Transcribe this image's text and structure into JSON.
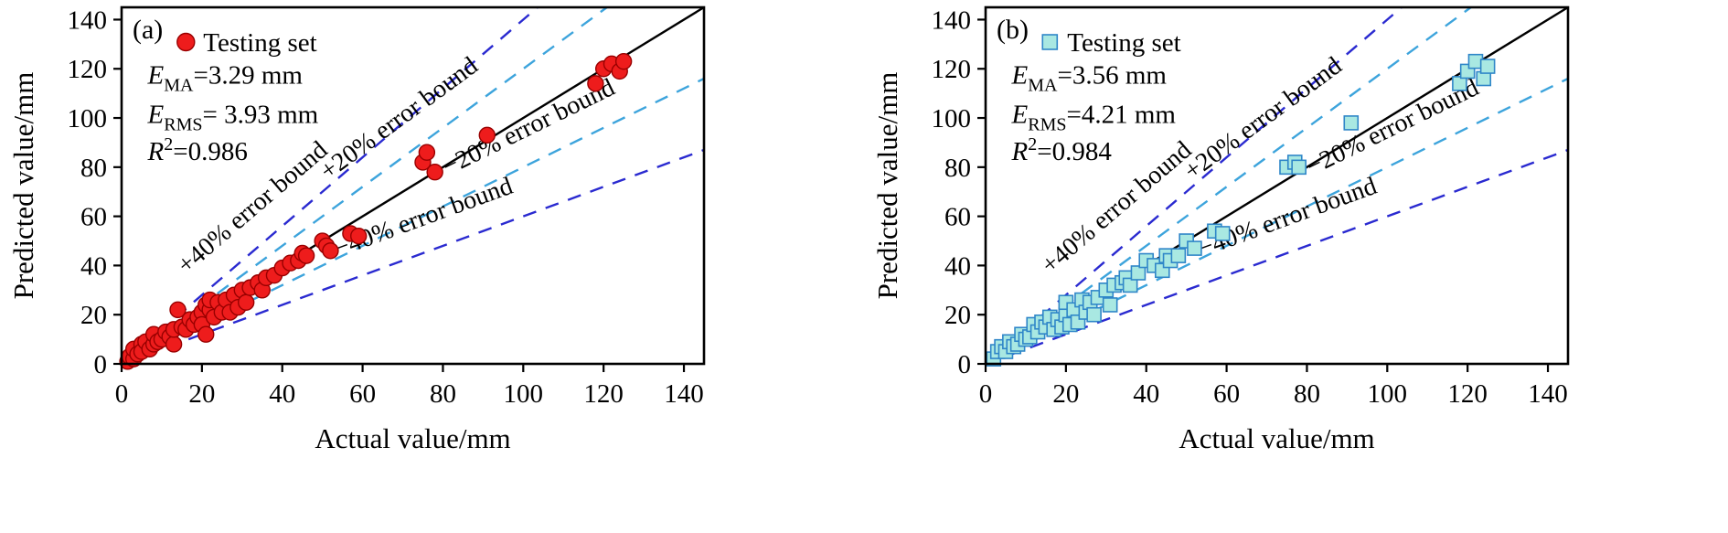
{
  "figure": {
    "panels": [
      {
        "panel_label": "(a)",
        "legend": {
          "label": "Testing set",
          "marker": "circle"
        },
        "stats": [
          {
            "var": "E",
            "script": "MA",
            "script_pos": "sub",
            "rest": "=3.29 mm"
          },
          {
            "var": "E",
            "script": "RMS",
            "script_pos": "sub",
            "rest": "= 3.93 mm"
          },
          {
            "var": "R",
            "script": "2",
            "script_pos": "sup",
            "rest": "=0.986"
          }
        ]
      },
      {
        "panel_label": "(b)",
        "legend": {
          "label": "Testing set",
          "marker": "square"
        },
        "stats": [
          {
            "var": "E",
            "script": "MA",
            "script_pos": "sub",
            "rest": "=3.56 mm"
          },
          {
            "var": "E",
            "script": "RMS",
            "script_pos": "sub",
            "rest": "=4.21 mm"
          },
          {
            "var": "R",
            "script": "2",
            "script_pos": "sup",
            "rest": "=0.984"
          }
        ]
      }
    ]
  },
  "chart_data": [
    {
      "type": "scatter",
      "title": "",
      "xlabel": "Actual value/mm",
      "ylabel": "Predicted value/mm",
      "xlim": [
        0,
        145
      ],
      "ylim": [
        0,
        145
      ],
      "xticks": [
        0,
        20,
        40,
        60,
        80,
        100,
        120,
        140
      ],
      "yticks": [
        0,
        20,
        40,
        60,
        80,
        100,
        120,
        140
      ],
      "grid": false,
      "legend_position": "top-left-inside",
      "series": [
        {
          "name": "Testing set",
          "marker": "circle",
          "fill": "#ee1c1c",
          "edge": "#990000",
          "points": [
            [
              1.5,
              1
            ],
            [
              2,
              3
            ],
            [
              3,
              2
            ],
            [
              3,
              6
            ],
            [
              4,
              4
            ],
            [
              5,
              8
            ],
            [
              5,
              5
            ],
            [
              6,
              9
            ],
            [
              7,
              6
            ],
            [
              8,
              8
            ],
            [
              8,
              12
            ],
            [
              9,
              9
            ],
            [
              10,
              10
            ],
            [
              11,
              13
            ],
            [
              12,
              11
            ],
            [
              13,
              8
            ],
            [
              13,
              14
            ],
            [
              14,
              22
            ],
            [
              15,
              15
            ],
            [
              16,
              14
            ],
            [
              17,
              18
            ],
            [
              18,
              16
            ],
            [
              19,
              19
            ],
            [
              20,
              21
            ],
            [
              20,
              16
            ],
            [
              21,
              24
            ],
            [
              21,
              12
            ],
            [
              22,
              22
            ],
            [
              22,
              26
            ],
            [
              23,
              19
            ],
            [
              24,
              25
            ],
            [
              25,
              21
            ],
            [
              26,
              26
            ],
            [
              27,
              21
            ],
            [
              28,
              28
            ],
            [
              29,
              23
            ],
            [
              30,
              30
            ],
            [
              31,
              25
            ],
            [
              32,
              31
            ],
            [
              34,
              33
            ],
            [
              35,
              30
            ],
            [
              36,
              35
            ],
            [
              38,
              36
            ],
            [
              40,
              39
            ],
            [
              42,
              41
            ],
            [
              44,
              42
            ],
            [
              45,
              45
            ],
            [
              46,
              44
            ],
            [
              50,
              50
            ],
            [
              51,
              48
            ],
            [
              52,
              46
            ],
            [
              57,
              53
            ],
            [
              59,
              52
            ],
            [
              75,
              82
            ],
            [
              76,
              86
            ],
            [
              78,
              78
            ],
            [
              91,
              93
            ],
            [
              118,
              114
            ],
            [
              120,
              120
            ],
            [
              122,
              122
            ],
            [
              124,
              119
            ],
            [
              125,
              123
            ]
          ]
        }
      ],
      "reference_lines": [
        {
          "name": "identity",
          "label": "",
          "slope": 1.0,
          "style": "solid",
          "color": "#000000"
        },
        {
          "name": "plus40",
          "label": "+40% error bound",
          "slope": 1.4,
          "style": "dashed",
          "color": "#2a2ad0",
          "label_anchor_x": 38
        },
        {
          "name": "plus20",
          "label": "+20% error bound",
          "slope": 1.2,
          "style": "dashed",
          "color": "#3da4dc",
          "label_anchor_x": 74
        },
        {
          "name": "minus20",
          "label": "−20% error bound",
          "slope": 0.8,
          "style": "dashed",
          "color": "#3da4dc",
          "label_anchor_x": 105
        },
        {
          "name": "minus40",
          "label": "−40% error bound",
          "slope": 0.6,
          "style": "dashed",
          "color": "#2a2ad0",
          "label_anchor_x": 78
        }
      ]
    },
    {
      "type": "scatter",
      "title": "",
      "xlabel": "Actual value/mm",
      "ylabel": "Predicted value/mm",
      "xlim": [
        0,
        145
      ],
      "ylim": [
        0,
        145
      ],
      "xticks": [
        0,
        20,
        40,
        60,
        80,
        100,
        120,
        140
      ],
      "yticks": [
        0,
        20,
        40,
        60,
        80,
        100,
        120,
        140
      ],
      "grid": false,
      "legend_position": "top-left-inside",
      "series": [
        {
          "name": "Testing set",
          "marker": "square",
          "fill": "#a9e8e2",
          "edge": "#2f86c8",
          "points": [
            [
              2,
              2
            ],
            [
              3,
              5
            ],
            [
              4,
              7
            ],
            [
              5,
              5
            ],
            [
              6,
              9
            ],
            [
              7,
              7
            ],
            [
              8,
              8
            ],
            [
              9,
              12
            ],
            [
              10,
              10
            ],
            [
              11,
              11
            ],
            [
              12,
              16
            ],
            [
              13,
              13
            ],
            [
              14,
              17
            ],
            [
              15,
              15
            ],
            [
              16,
              19
            ],
            [
              17,
              14
            ],
            [
              18,
              18
            ],
            [
              19,
              15
            ],
            [
              20,
              20
            ],
            [
              20,
              25
            ],
            [
              21,
              16
            ],
            [
              22,
              22
            ],
            [
              23,
              17
            ],
            [
              24,
              26
            ],
            [
              25,
              21
            ],
            [
              26,
              25
            ],
            [
              27,
              20
            ],
            [
              28,
              27
            ],
            [
              30,
              30
            ],
            [
              31,
              24
            ],
            [
              32,
              32
            ],
            [
              34,
              33
            ],
            [
              35,
              35
            ],
            [
              36,
              32
            ],
            [
              38,
              37
            ],
            [
              40,
              42
            ],
            [
              42,
              40
            ],
            [
              44,
              38
            ],
            [
              45,
              44
            ],
            [
              46,
              42
            ],
            [
              48,
              44
            ],
            [
              50,
              50
            ],
            [
              52,
              47
            ],
            [
              57,
              54
            ],
            [
              59,
              53
            ],
            [
              75,
              80
            ],
            [
              77,
              82
            ],
            [
              78,
              80
            ],
            [
              91,
              98
            ],
            [
              118,
              114
            ],
            [
              120,
              119
            ],
            [
              122,
              123
            ],
            [
              124,
              116
            ],
            [
              125,
              121
            ]
          ]
        }
      ],
      "reference_lines": [
        {
          "name": "identity",
          "label": "",
          "slope": 1.0,
          "style": "solid",
          "color": "#000000"
        },
        {
          "name": "plus40",
          "label": "+40% error bound",
          "slope": 1.4,
          "style": "dashed",
          "color": "#2a2ad0",
          "label_anchor_x": 38
        },
        {
          "name": "plus20",
          "label": "+20% error bound",
          "slope": 1.2,
          "style": "dashed",
          "color": "#3da4dc",
          "label_anchor_x": 74
        },
        {
          "name": "minus20",
          "label": "−20% error bound",
          "slope": 0.8,
          "style": "dashed",
          "color": "#3da4dc",
          "label_anchor_x": 105
        },
        {
          "name": "minus40",
          "label": "−40% error bound",
          "slope": 0.6,
          "style": "dashed",
          "color": "#2a2ad0",
          "label_anchor_x": 78
        }
      ]
    }
  ]
}
